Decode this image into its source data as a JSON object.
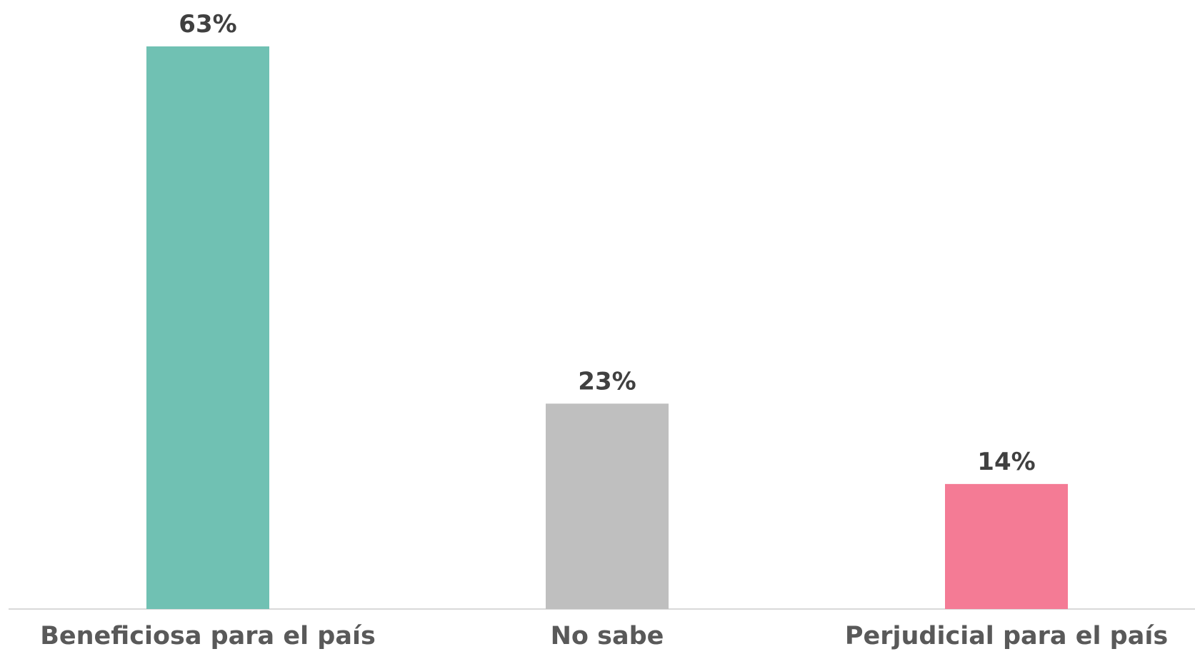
{
  "chart_data": {
    "type": "bar",
    "categories": [
      "Beneficiosa para el país",
      "No sabe",
      "Perjudicial para el país"
    ],
    "values": [
      63,
      23,
      14
    ],
    "value_labels": [
      "63%",
      "23%",
      "14%"
    ],
    "colors": [
      "#70c1b3",
      "#bfbfbf",
      "#f47b95"
    ],
    "label_color": "#404040",
    "category_label_color": "#595959",
    "axis_color": "#d9d9d9",
    "ylim": [
      0,
      63
    ],
    "grid": false,
    "legend": "none"
  }
}
